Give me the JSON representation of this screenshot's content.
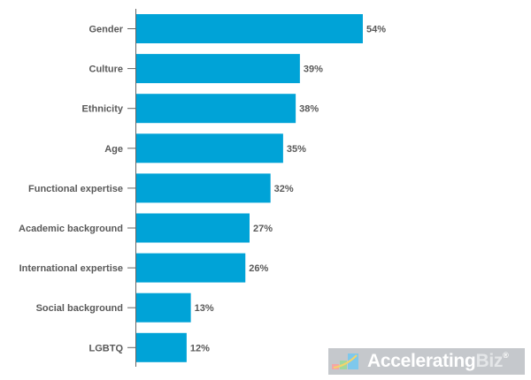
{
  "chart_data": {
    "type": "bar",
    "orientation": "horizontal",
    "categories": [
      "Gender",
      "Culture",
      "Ethnicity",
      "Age",
      "Functional expertise",
      "Academic background",
      "International expertise",
      "Social background",
      "LGBTQ"
    ],
    "values": [
      54,
      39,
      38,
      35,
      32,
      27,
      26,
      13,
      12
    ],
    "data_labels": [
      "54%",
      "39%",
      "38%",
      "35%",
      "32%",
      "27%",
      "26%",
      "13%",
      "12%"
    ],
    "unit": "%",
    "xlim": [
      0,
      95
    ],
    "grid": false,
    "bar_color": "#00a3d7",
    "label_color": "#595959",
    "title": "",
    "xlabel": "",
    "ylabel": ""
  },
  "watermark": {
    "text_main": "Accelerating",
    "text_accent": "Biz",
    "mark": "®"
  }
}
